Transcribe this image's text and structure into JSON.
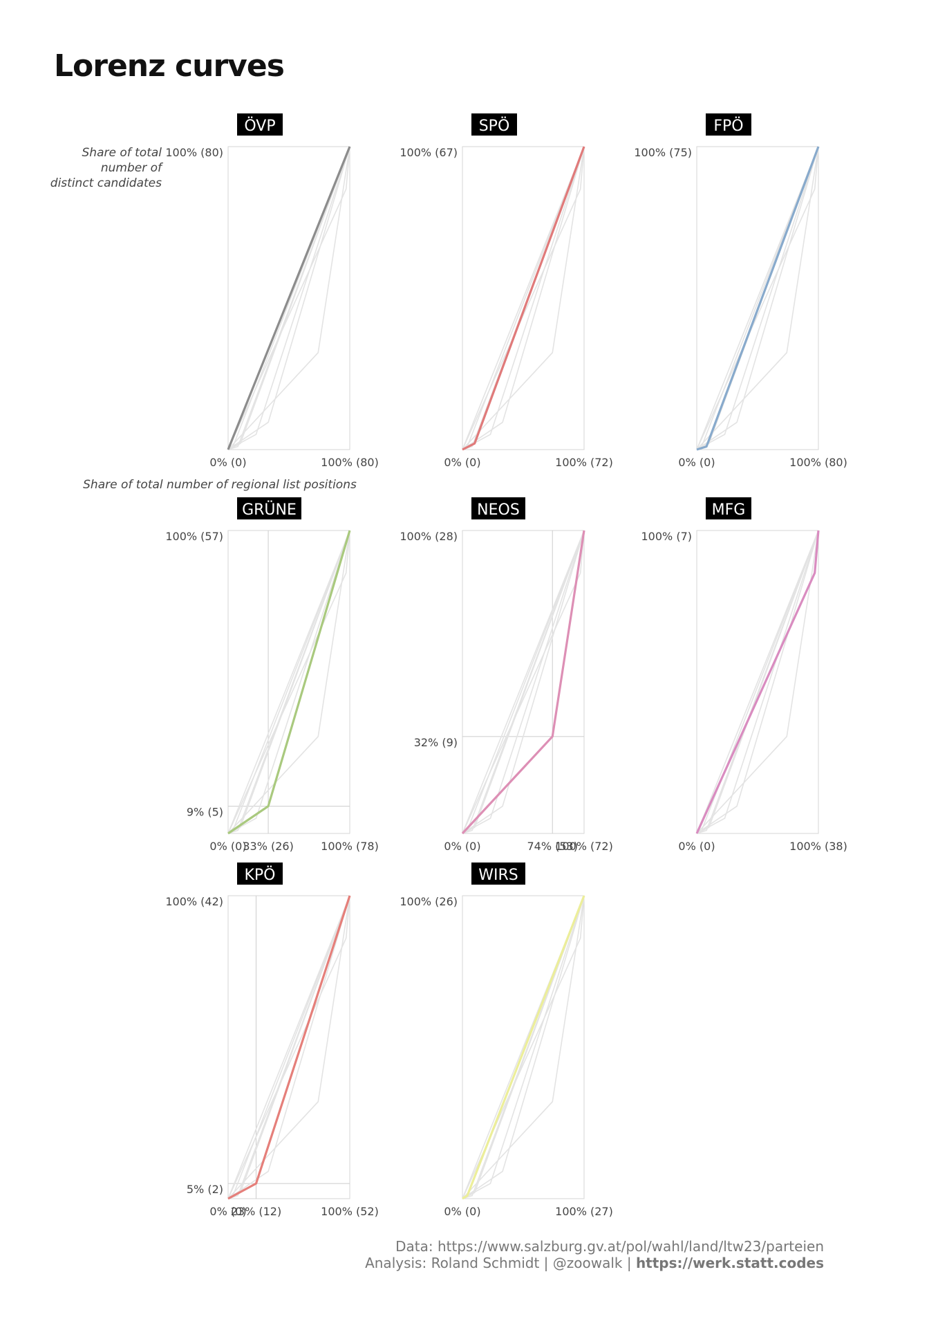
{
  "title": "Lorenz curves",
  "caption": {
    "line1": "Data: https://www.salzburg.gv.at/pol/wahl/land/ltw23/parteien",
    "line2_prefix": "Analysis: Roland Schmidt | @zoowalk | ",
    "line2_link": "https://werk.statt.codes"
  },
  "chart_data": {
    "type": "line",
    "title": "Lorenz curves",
    "xlabel": "Share of total number of regional list positions",
    "ylabel": "Share of total number of distinct candidates",
    "xlim": [
      0,
      1
    ],
    "ylim": [
      0,
      1
    ],
    "grid": false,
    "panels": [
      {
        "name": "ÖVP",
        "color": "#8c8c8c",
        "x": [
          0,
          1
        ],
        "y": [
          0,
          1
        ],
        "x_ticks": [
          "0% (0)",
          "100% (80)"
        ],
        "y_ticks": [
          "100% (80)"
        ],
        "refs": []
      },
      {
        "name": "SPÖ",
        "color": "#e07a7a",
        "x": [
          0,
          0.1,
          1
        ],
        "y": [
          0,
          0.02,
          1
        ],
        "x_ticks": [
          "0% (0)",
          "100% (72)"
        ],
        "y_ticks": [
          "100% (67)"
        ],
        "refs": []
      },
      {
        "name": "FPÖ",
        "color": "#88aacc",
        "x": [
          0,
          0.08,
          1
        ],
        "y": [
          0,
          0.01,
          1
        ],
        "x_ticks": [
          "0% (0)",
          "100% (80)"
        ],
        "y_ticks": [
          "100% (75)"
        ],
        "refs": []
      },
      {
        "name": "GRÜNE",
        "color": "#a9c97e",
        "x": [
          0,
          0.33,
          1
        ],
        "y": [
          0,
          0.09,
          1
        ],
        "x_ticks": [
          "0% (0)",
          "33% (26)",
          "100% (78)"
        ],
        "y_ticks": [
          "9% (5)",
          "100% (57)"
        ],
        "refs": [
          {
            "x": 0.33,
            "y": 0.09
          }
        ]
      },
      {
        "name": "NEOS",
        "color": "#dd8fb5",
        "x": [
          0,
          0.74,
          1
        ],
        "y": [
          0,
          0.32,
          1
        ],
        "x_ticks": [
          "0% (0)",
          "74% (53)",
          "100% (72)"
        ],
        "y_ticks": [
          "32% (9)",
          "100% (28)"
        ],
        "refs": [
          {
            "x": 0.74,
            "y": 0.32
          }
        ]
      },
      {
        "name": "MFG",
        "color": "#d98cc0",
        "x": [
          0,
          0.97,
          1
        ],
        "y": [
          0,
          0.86,
          1
        ],
        "x_ticks": [
          "0% (0)",
          "100% (38)"
        ],
        "y_ticks": [
          "100% (7)"
        ],
        "refs": []
      },
      {
        "name": "KPÖ",
        "color": "#e57f7a",
        "x": [
          0,
          0.23,
          1
        ],
        "y": [
          0,
          0.05,
          1
        ],
        "x_ticks": [
          "0% (0)",
          "23% (12)",
          "100% (52)"
        ],
        "y_ticks": [
          "5% (2)",
          "100% (42)"
        ],
        "refs": [
          {
            "x": 0.23,
            "y": 0.05
          }
        ]
      },
      {
        "name": "WIRS",
        "color": "#ecee9a",
        "x": [
          0,
          0.04,
          1
        ],
        "y": [
          0,
          0.01,
          1
        ],
        "x_ticks": [
          "0% (0)",
          "100% (27)"
        ],
        "y_ticks": [
          "100% (26)"
        ],
        "refs": []
      }
    ]
  }
}
